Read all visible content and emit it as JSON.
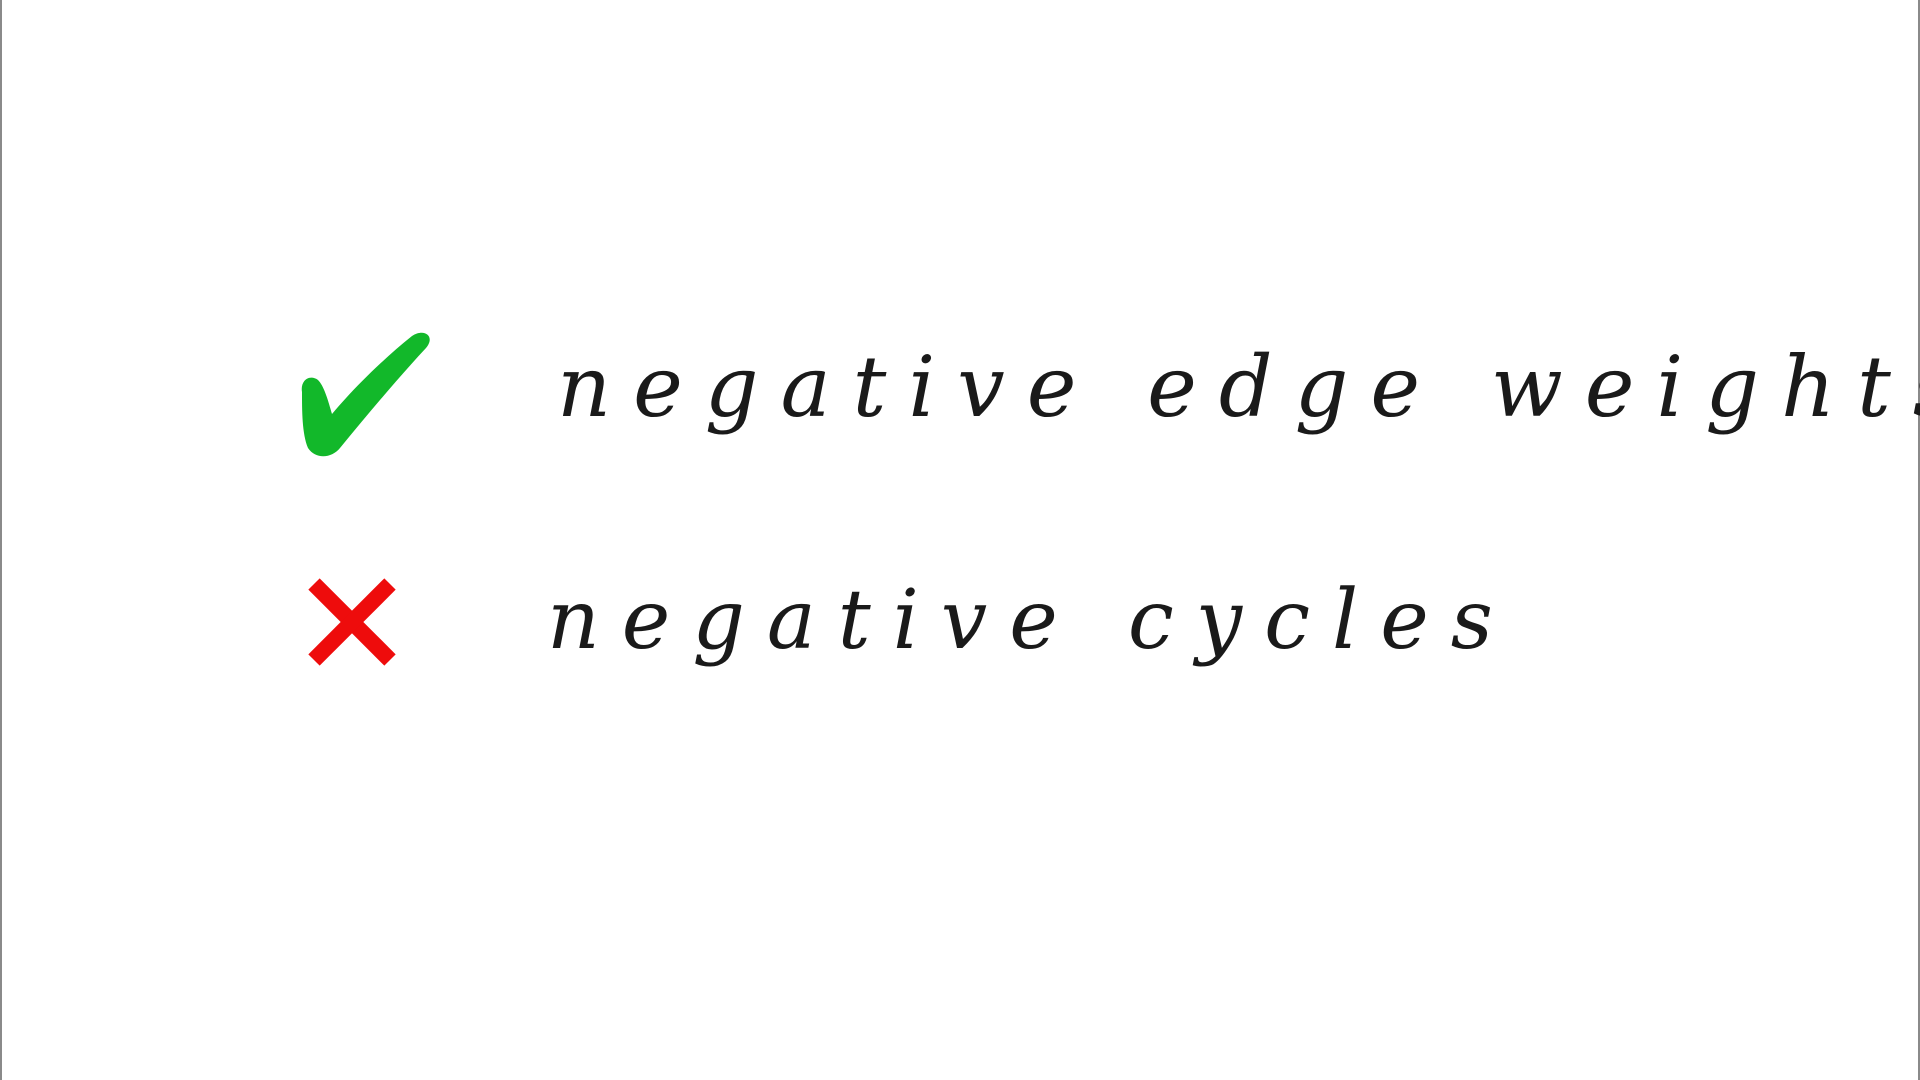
{
  "items": [
    {
      "status": "allowed",
      "icon": "check-mark-icon",
      "icon_color": "#12b82a",
      "text": "negative edge weights"
    },
    {
      "status": "not-allowed",
      "icon": "cross-mark-icon",
      "icon_color": "#ee0c0c",
      "text": "negative cycles"
    }
  ],
  "colors": {
    "background": "#ffffff",
    "ink": "#1a1a1a"
  }
}
